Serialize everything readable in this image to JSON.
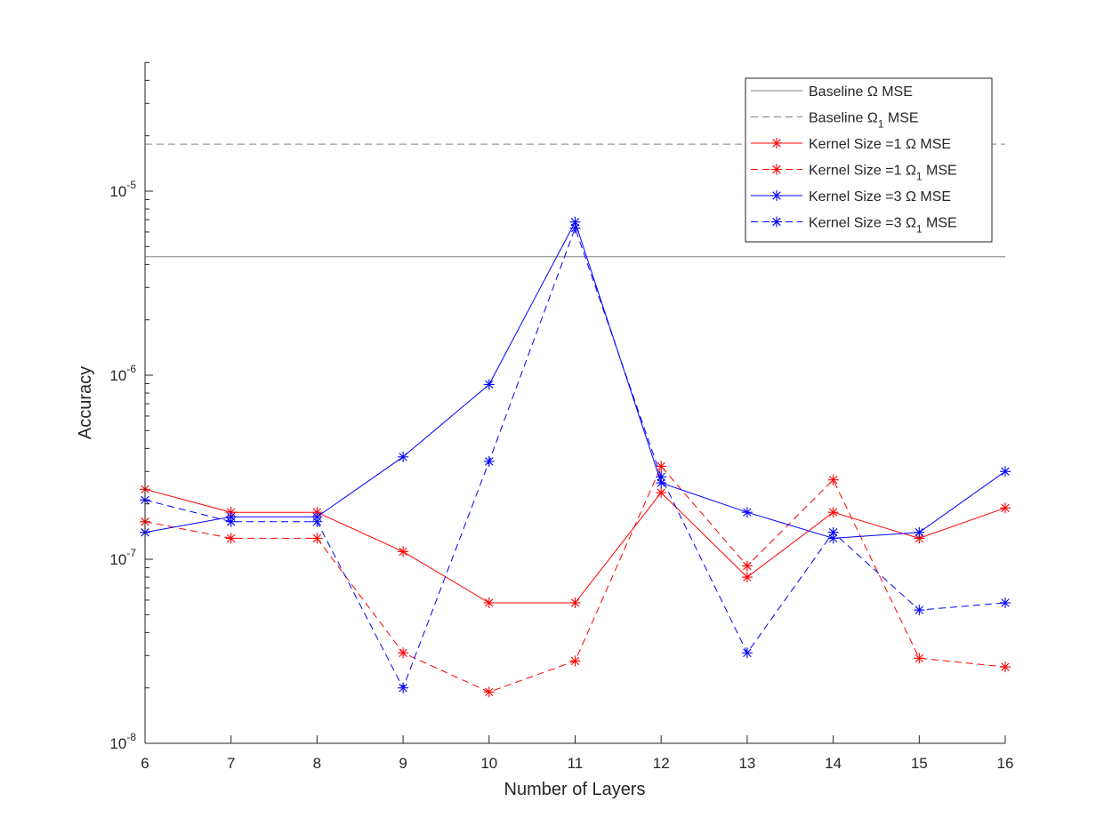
{
  "chart_data": {
    "type": "line",
    "title": "",
    "xlabel": "Number of Layers",
    "ylabel": "Accuracy",
    "yscale": "log",
    "xlim": [
      6,
      16
    ],
    "ylim": [
      1e-08,
      6e-05
    ],
    "x": [
      6,
      7,
      8,
      9,
      10,
      11,
      12,
      13,
      14,
      15,
      16
    ],
    "x_tick_labels": [
      "6",
      "7",
      "8",
      "9",
      "10",
      "11",
      "12",
      "13",
      "14",
      "15",
      "16"
    ],
    "y_ticks": [
      {
        "value": 1e-08,
        "base": "10",
        "exp": "-8"
      },
      {
        "value": 1e-07,
        "base": "10",
        "exp": "-7"
      },
      {
        "value": 1e-06,
        "base": "10",
        "exp": "-6"
      },
      {
        "value": 1e-05,
        "base": "10",
        "exp": "-5"
      }
    ],
    "legend_position": "top-right",
    "series": [
      {
        "name": "Baseline Ω MSE",
        "label_main": "Baseline Ω",
        "label_sub": "",
        "label_tail": " MSE",
        "color": "#808080",
        "dashed": false,
        "marker": false,
        "constant": 4.4e-06
      },
      {
        "name": "Baseline Ω 1 MSE",
        "label_main": "Baseline Ω",
        "label_sub": "1",
        "label_tail": " MSE",
        "color": "#808080",
        "dashed": true,
        "marker": false,
        "constant": 1.8e-05
      },
      {
        "name": "Kernel Size =1 Ω MSE",
        "label_main": "Kernel Size =1 Ω",
        "label_sub": "",
        "label_tail": " MSE",
        "color": "#ff0000",
        "dashed": false,
        "marker": true,
        "values": [
          2.4e-07,
          1.8e-07,
          1.8e-07,
          1.1e-07,
          5.8e-08,
          5.8e-08,
          2.3e-07,
          8e-08,
          1.8e-07,
          1.3e-07,
          1.9e-07
        ]
      },
      {
        "name": "Kernel Size =1 Ω 1 MSE",
        "label_main": "Kernel Size =1 Ω",
        "label_sub": "1",
        "label_tail": " MSE",
        "color": "#ff0000",
        "dashed": true,
        "marker": true,
        "values": [
          1.6e-07,
          1.3e-07,
          1.3e-07,
          3.1e-08,
          1.9e-08,
          2.8e-08,
          3.2e-07,
          9.2e-08,
          2.7e-07,
          2.9e-08,
          2.6e-08
        ]
      },
      {
        "name": "Kernel Size =3 Ω MSE",
        "label_main": "Kernel Size =3 Ω",
        "label_sub": "",
        "label_tail": " MSE",
        "color": "#0000ff",
        "dashed": false,
        "marker": true,
        "values": [
          1.4e-07,
          1.7e-07,
          1.7e-07,
          3.6e-07,
          8.9e-07,
          6.8e-06,
          2.6e-07,
          1.8e-07,
          1.3e-07,
          1.4e-07,
          3e-07
        ]
      },
      {
        "name": "Kernel Size =3 Ω 1 MSE",
        "label_main": "Kernel Size =3 Ω",
        "label_sub": "1",
        "label_tail": " MSE",
        "color": "#0000ff",
        "dashed": true,
        "marker": true,
        "values": [
          2.1e-07,
          1.6e-07,
          1.6e-07,
          2e-08,
          3.4e-07,
          6.3e-06,
          2.8e-07,
          3.1e-08,
          1.4e-07,
          5.3e-08,
          5.8e-08
        ]
      }
    ]
  }
}
